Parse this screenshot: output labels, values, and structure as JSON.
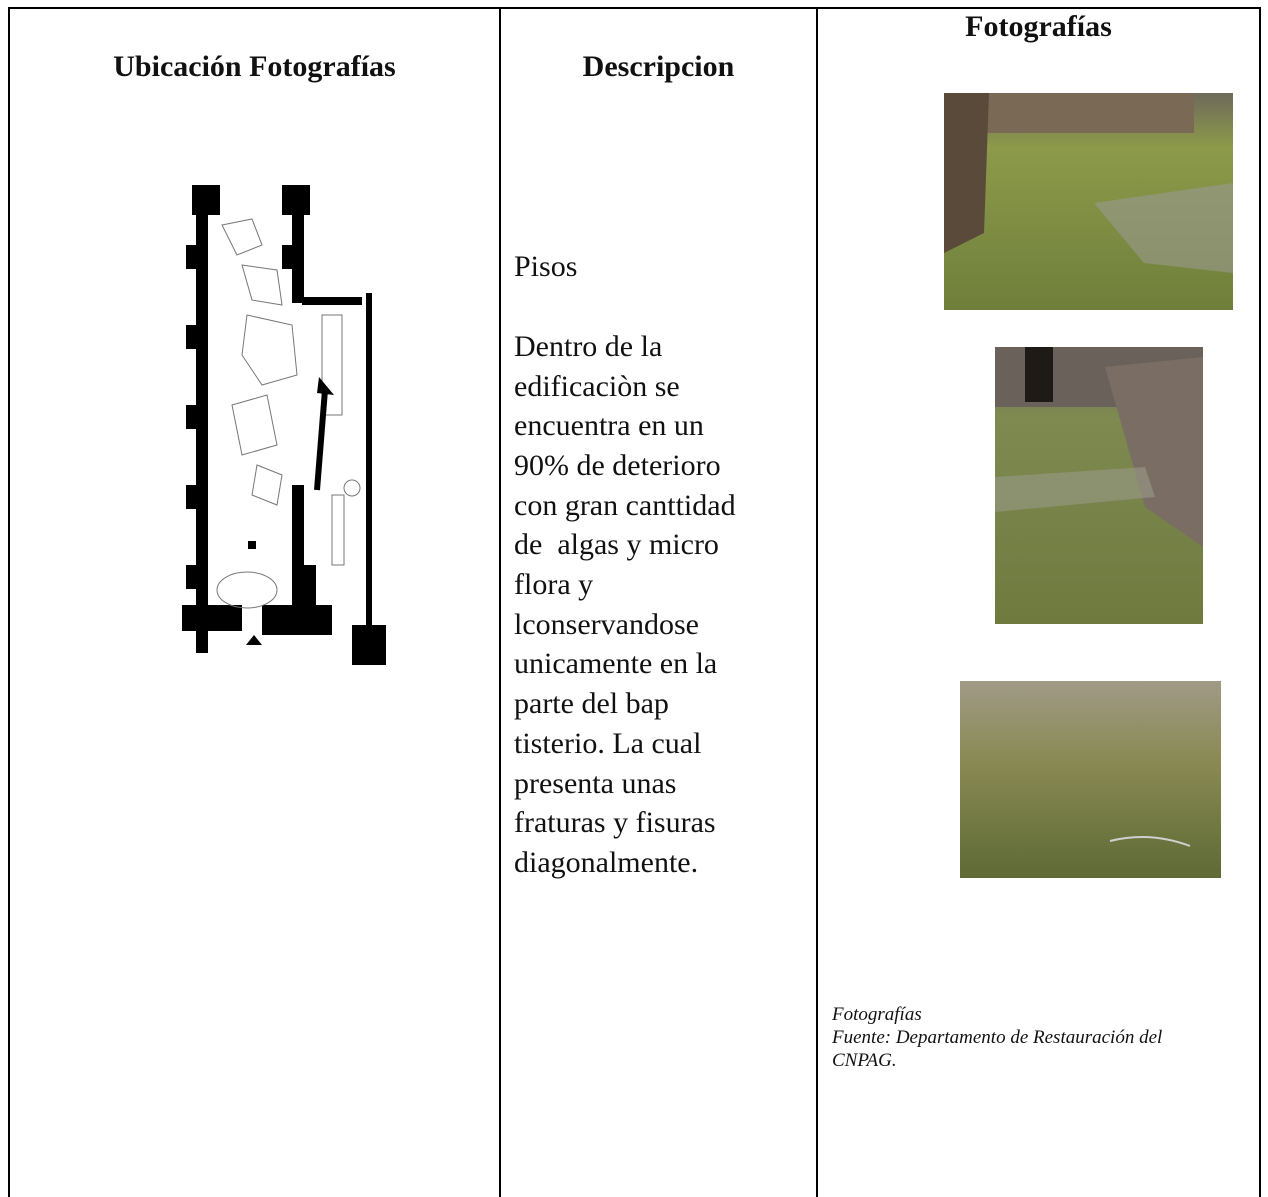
{
  "table": {
    "headers": [
      "Ubicación Fotografías",
      "Descripcion",
      "Fotografías"
    ],
    "description": {
      "title": "Pisos",
      "lines": [
        "Dentro de la",
        "edificaciòn se",
        "encuentra en un",
        "90% de deterioro",
        "con gran canttidad",
        "de  algas y micro",
        "flora y",
        "lconservandose",
        "unicamente en la",
        "parte del bap",
        "tisterio. La cual",
        "presenta unas",
        "fraturas y fisuras",
        "diagonalmente."
      ]
    },
    "caption": [
      "Fotografías",
      "Fuente: Departamento de Restauración del",
      "CNPAG."
    ]
  }
}
